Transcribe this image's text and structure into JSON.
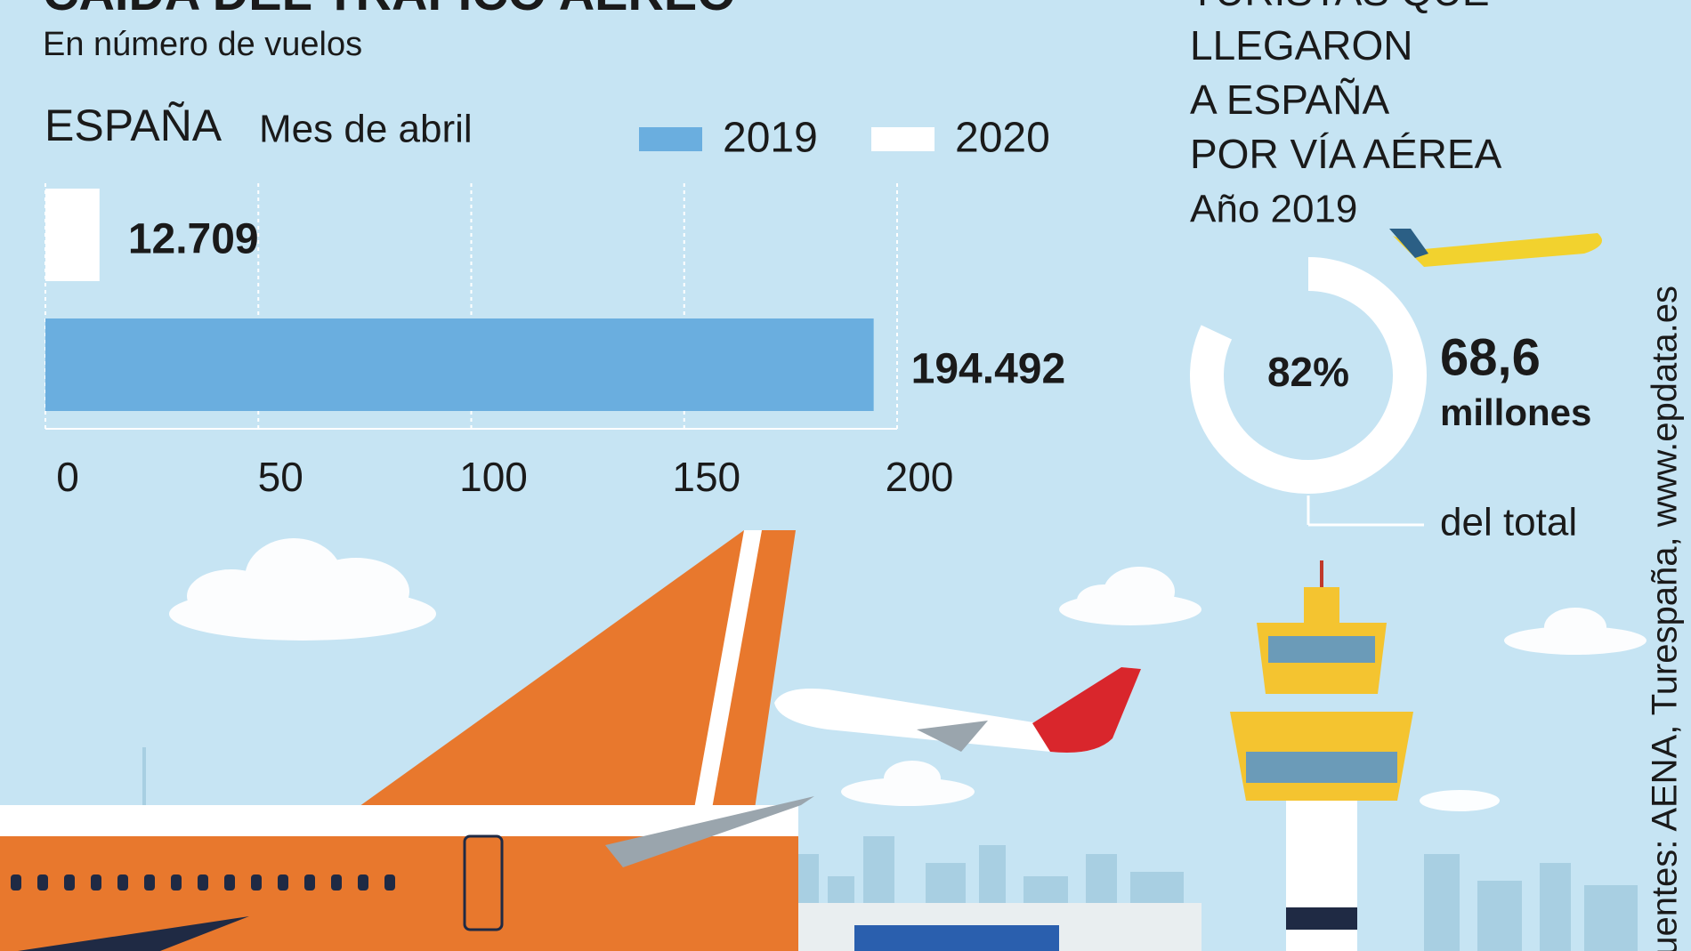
{
  "chart_data": [
    {
      "type": "bar",
      "orientation": "horizontal",
      "title": "CAÍDA DEL TRÁFICO AÉREO",
      "subtitle": "En número de vuelos",
      "region": "ESPAÑA",
      "period": "Mes de abril",
      "categories": [
        null
      ],
      "series": [
        {
          "name": "2019",
          "color": "#6aaedf",
          "values": [
            194.492
          ]
        },
        {
          "name": "2020",
          "color": "#ffffff",
          "values": [
            12.709
          ]
        }
      ],
      "xlim": [
        0,
        200
      ],
      "xticks": [
        0,
        50,
        100,
        150,
        200
      ],
      "grid": true,
      "legend": "top"
    },
    {
      "type": "pie",
      "style": "donut",
      "title": [
        "TURISTAS QUE",
        "LLEGARON",
        "A ESPAÑA",
        "POR VÍA AÉREA"
      ],
      "subtitle": "Año 2019",
      "values": [
        82
      ],
      "value_labels": [
        "82%"
      ],
      "color": "#ffffff",
      "annotation": {
        "value": "68,6",
        "unit": "millones",
        "note": "del total"
      }
    }
  ],
  "source": "Fuentes: AENA, Turespaña, www.epdata.es"
}
